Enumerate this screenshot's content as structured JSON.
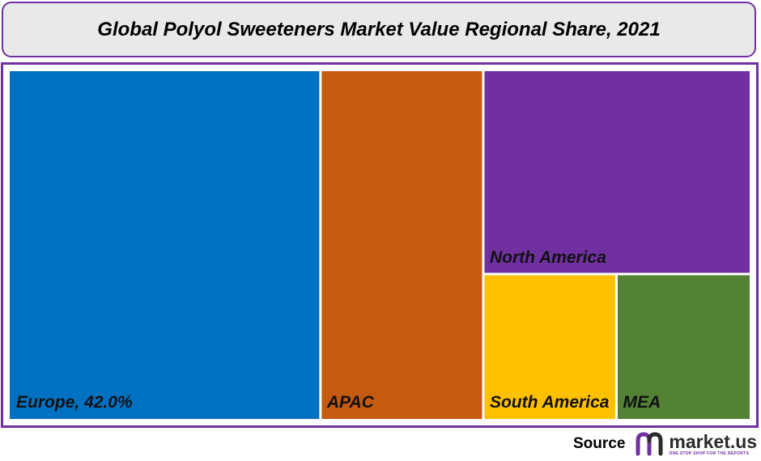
{
  "chart_data": {
    "type": "treemap",
    "title": "Global Polyol Sweeteners Market Value Regional Share, 2021",
    "unit": "%",
    "items": [
      {
        "name": "Europe",
        "label": "Europe, 42.0%",
        "value": 42.0,
        "color": "#0070c0"
      },
      {
        "name": "APAC",
        "label": "APAC",
        "value": 22.0,
        "color": "#c55a11"
      },
      {
        "name": "North America",
        "label": "North America",
        "value": 21.0,
        "color": "#7030a0"
      },
      {
        "name": "South America",
        "label": "South America",
        "value": 7.5,
        "color": "#ffc000"
      },
      {
        "name": "MEA",
        "label": "MEA",
        "value": 7.5,
        "color": "#548235"
      }
    ]
  },
  "source": {
    "label": "Source",
    "logo_icon": "market-us-logo-icon",
    "logo_name": "market.us",
    "logo_tagline": "ONE STOP SHOP FOR THE REPORTS"
  },
  "colors": {
    "frame": "#7030a0",
    "title_background": "#e9e9e9"
  }
}
